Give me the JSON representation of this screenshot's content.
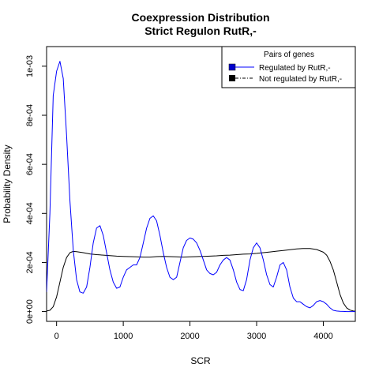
{
  "chart_data": {
    "type": "line",
    "title": "Coexpression Distribution",
    "subtitle": "Strict Regulon RutR,-",
    "xlabel": "SCR",
    "ylabel": "Probability Density",
    "xlim": [
      -150,
      4480
    ],
    "ylim": [
      -4e-05,
      0.00108
    ],
    "x_ticks": [
      0,
      1000,
      2000,
      3000,
      4000
    ],
    "x_tick_labels": [
      "0",
      "1000",
      "2000",
      "3000",
      "4000"
    ],
    "y_ticks": [
      0,
      0.0002,
      0.0004,
      0.0006,
      0.0008,
      0.001
    ],
    "y_tick_labels": [
      "0e+00",
      "2e-04",
      "4e-04",
      "6e-04",
      "8e-04",
      "1e-03"
    ],
    "grid": false,
    "legend": {
      "title": "Pairs of genes",
      "placement": "top-right",
      "entries": [
        "Regulated by  RutR,-",
        "Not regulated by  RutR,-"
      ]
    },
    "series": [
      {
        "name": "Regulated by  RutR,-",
        "color": "#0000ff",
        "x": [
          -150,
          -100,
          -50,
          0,
          50,
          100,
          150,
          200,
          250,
          300,
          350,
          400,
          450,
          500,
          550,
          600,
          650,
          700,
          750,
          800,
          850,
          900,
          950,
          1000,
          1050,
          1100,
          1150,
          1200,
          1250,
          1300,
          1350,
          1400,
          1450,
          1500,
          1550,
          1600,
          1650,
          1700,
          1750,
          1800,
          1850,
          1900,
          1950,
          2000,
          2050,
          2100,
          2150,
          2200,
          2250,
          2300,
          2350,
          2400,
          2450,
          2500,
          2550,
          2600,
          2650,
          2700,
          2750,
          2800,
          2850,
          2900,
          2950,
          3000,
          3050,
          3100,
          3150,
          3200,
          3250,
          3300,
          3350,
          3400,
          3450,
          3500,
          3550,
          3600,
          3650,
          3700,
          3750,
          3800,
          3850,
          3900,
          3950,
          4000,
          4050,
          4100,
          4150,
          4200,
          4250,
          4300,
          4350,
          4400,
          4450,
          4480
        ],
        "y": [
          8e-05,
          0.0004,
          0.00088,
          0.00098,
          0.00102,
          0.00095,
          0.00072,
          0.00045,
          0.00025,
          0.00013,
          8e-05,
          7.5e-05,
          0.0001,
          0.00018,
          0.00028,
          0.00034,
          0.00035,
          0.00031,
          0.00024,
          0.00017,
          0.00012,
          9.5e-05,
          0.0001,
          0.00014,
          0.00017,
          0.00018,
          0.00019,
          0.00019,
          0.00022,
          0.00028,
          0.00034,
          0.00038,
          0.00039,
          0.00037,
          0.00031,
          0.00024,
          0.00018,
          0.00014,
          0.00013,
          0.00014,
          0.0002,
          0.00026,
          0.00029,
          0.0003,
          0.000295,
          0.00028,
          0.00025,
          0.00021,
          0.00017,
          0.000155,
          0.00015,
          0.00016,
          0.00019,
          0.00021,
          0.00022,
          0.00021,
          0.00017,
          0.00012,
          9e-05,
          8.5e-05,
          0.00013,
          0.00021,
          0.00026,
          0.00028,
          0.00026,
          0.00021,
          0.00015,
          0.00011,
          0.0001,
          0.00014,
          0.00019,
          0.0002,
          0.00017,
          0.0001,
          5.5e-05,
          4e-05,
          4e-05,
          3e-05,
          2e-05,
          1.5e-05,
          2.5e-05,
          4e-05,
          4.5e-05,
          4e-05,
          3e-05,
          1.5e-05,
          5e-06,
          2e-06,
          1e-06,
          5e-07,
          0,
          0,
          0,
          0
        ]
      },
      {
        "name": "Not regulated by  RutR,-",
        "color": "#000000",
        "x": [
          -150,
          -100,
          -50,
          0,
          50,
          100,
          150,
          200,
          250,
          300,
          400,
          500,
          600,
          700,
          800,
          900,
          1000,
          1100,
          1200,
          1300,
          1400,
          1500,
          1600,
          1700,
          1800,
          1900,
          2000,
          2100,
          2200,
          2300,
          2400,
          2500,
          2600,
          2700,
          2800,
          2900,
          3000,
          3100,
          3200,
          3300,
          3400,
          3500,
          3600,
          3700,
          3800,
          3900,
          4000,
          4050,
          4100,
          4150,
          4200,
          4250,
          4300,
          4350,
          4400,
          4450,
          4480
        ],
        "y": [
          2e-06,
          5e-06,
          2e-05,
          6e-05,
          0.00012,
          0.00018,
          0.00022,
          0.00024,
          0.000245,
          0.000244,
          0.00024,
          0.000235,
          0.000232,
          0.00023,
          0.000228,
          0.000226,
          0.000225,
          0.000224,
          0.000223,
          0.000222,
          0.000222,
          0.000224,
          0.000225,
          0.000224,
          0.000223,
          0.000222,
          0.000223,
          0.000224,
          0.000225,
          0.000226,
          0.000227,
          0.000229,
          0.00023,
          0.000232,
          0.000234,
          0.000235,
          0.000237,
          0.00024,
          0.000243,
          0.000246,
          0.000249,
          0.000252,
          0.000255,
          0.000257,
          0.000257,
          0.000253,
          0.000242,
          0.00023,
          0.000205,
          0.00017,
          0.00012,
          7e-05,
          3.5e-05,
          1.5e-05,
          6e-06,
          2e-06,
          1e-06
        ]
      }
    ]
  }
}
